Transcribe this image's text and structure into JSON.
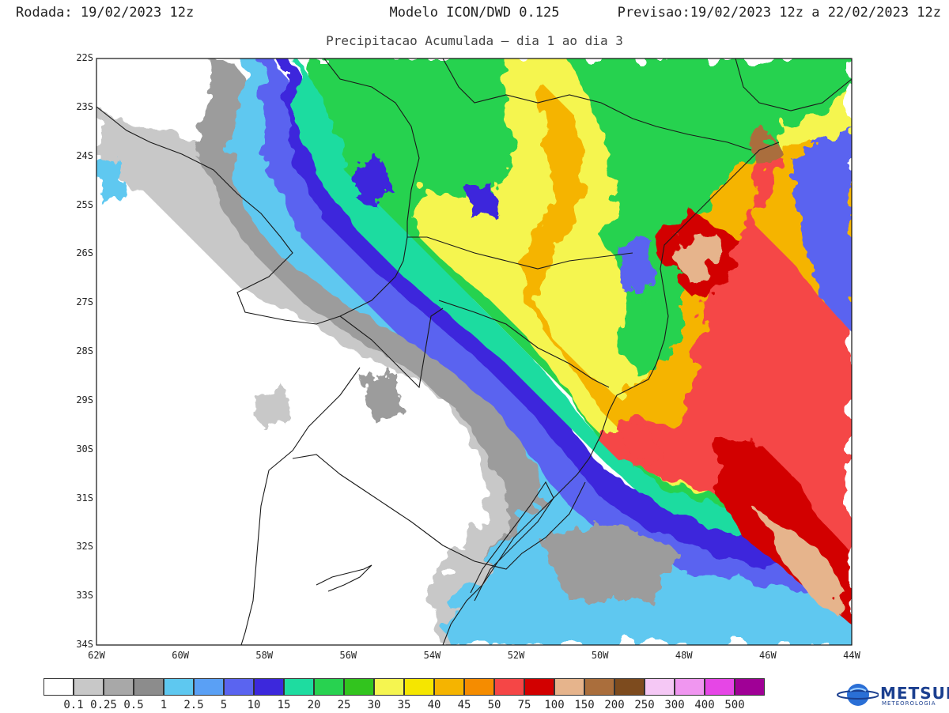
{
  "header": {
    "run_label": "Rodada:",
    "run_value": "19/02/2023 12z",
    "model": "Modelo ICON/DWD 0.125",
    "forecast_label": "Previsao:",
    "forecast_value": "19/02/2023 12z a 22/02/2023 12z",
    "subtitle": "Precipitacao Acumulada – dia 1 ao dia 3"
  },
  "axes": {
    "lat_ticks": [
      "22S",
      "23S",
      "24S",
      "25S",
      "26S",
      "27S",
      "28S",
      "29S",
      "30S",
      "31S",
      "32S",
      "33S",
      "34S"
    ],
    "lon_ticks": [
      "62W",
      "60W",
      "58W",
      "56W",
      "54W",
      "52W",
      "50W",
      "48W",
      "46W",
      "44W"
    ]
  },
  "legend": {
    "colors": [
      "#ffffff",
      "#c8c8c8",
      "#a8a8a8",
      "#8c8c8c",
      "#5ec8f0",
      "#5aa0f5",
      "#5a64f0",
      "#3c28dc",
      "#1edca0",
      "#28d250",
      "#32c41e",
      "#f5f550",
      "#f5e600",
      "#f5b400",
      "#f58c00",
      "#f54646",
      "#d20000",
      "#e6b48c",
      "#aa6e3c",
      "#7d4b1e",
      "#f5c8f5",
      "#f096f0",
      "#e646e6",
      "#a00096"
    ],
    "labels": [
      "0.1",
      "0.25",
      "0.5",
      "1",
      "2.5",
      "5",
      "10",
      "15",
      "20",
      "25",
      "30",
      "35",
      "40",
      "45",
      "50",
      "75",
      "100",
      "150",
      "200",
      "250",
      "300",
      "400",
      "500"
    ]
  },
  "logo": {
    "name": "METSUL",
    "sub": "METEOROLOGIA"
  }
}
